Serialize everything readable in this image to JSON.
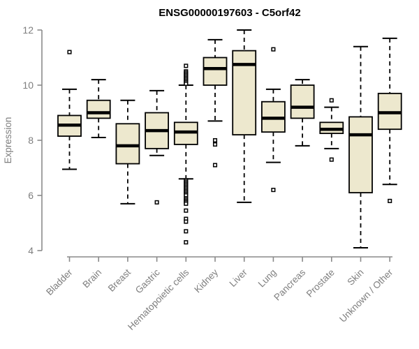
{
  "chart_data": {
    "type": "boxplot",
    "title": "ENSG00000197603 - C5orf42",
    "xlabel": "",
    "ylabel": "Expression",
    "ylim": [
      4,
      12
    ],
    "yticks": [
      4,
      6,
      8,
      10,
      12
    ],
    "grid": false,
    "legend": "none",
    "categories": [
      "Bladder",
      "Brain",
      "Breast",
      "Gastric",
      "Hematopoietic cells",
      "Kidney",
      "Liver",
      "Lung",
      "Pancreas",
      "Prostate",
      "Skin",
      "Unknown / Other"
    ],
    "series": [
      {
        "category": "Bladder",
        "whisker_low": 6.95,
        "q1": 8.15,
        "median": 8.55,
        "q3": 8.9,
        "whisker_high": 9.85,
        "outliers": [
          11.2
        ]
      },
      {
        "category": "Brain",
        "whisker_low": 8.1,
        "q1": 8.8,
        "median": 9.0,
        "q3": 9.45,
        "whisker_high": 10.2,
        "outliers": []
      },
      {
        "category": "Breast",
        "whisker_low": 5.7,
        "q1": 7.15,
        "median": 7.8,
        "q3": 8.6,
        "whisker_high": 9.45,
        "outliers": []
      },
      {
        "category": "Gastric",
        "whisker_low": 7.45,
        "q1": 7.7,
        "median": 8.35,
        "q3": 9.0,
        "whisker_high": 9.8,
        "outliers": [
          5.75
        ]
      },
      {
        "category": "Hematopoietic cells",
        "whisker_low": 6.6,
        "q1": 7.85,
        "median": 8.3,
        "q3": 8.65,
        "whisker_high": 10.0,
        "outliers": [
          10.7,
          10.5,
          10.45,
          10.4,
          10.35,
          10.3,
          10.25,
          10.2,
          10.15,
          10.1,
          10.05,
          6.55,
          6.5,
          6.45,
          6.4,
          6.35,
          6.3,
          6.25,
          6.2,
          6.15,
          6.1,
          6.05,
          6.0,
          5.9,
          5.85,
          5.8,
          5.75,
          5.7,
          5.45,
          5.15,
          5.05,
          4.7,
          4.3
        ]
      },
      {
        "category": "Kidney",
        "whisker_low": 8.7,
        "q1": 10.0,
        "median": 10.6,
        "q3": 11.0,
        "whisker_high": 11.65,
        "outliers": [
          8.0,
          7.85,
          7.1
        ]
      },
      {
        "category": "Liver",
        "whisker_low": 5.75,
        "q1": 8.2,
        "median": 10.75,
        "q3": 11.25,
        "whisker_high": 12.0,
        "outliers": []
      },
      {
        "category": "Lung",
        "whisker_low": 7.2,
        "q1": 8.3,
        "median": 8.8,
        "q3": 9.4,
        "whisker_high": 9.85,
        "outliers": [
          11.3,
          6.2
        ]
      },
      {
        "category": "Pancreas",
        "whisker_low": 7.8,
        "q1": 8.8,
        "median": 9.2,
        "q3": 10.0,
        "whisker_high": 10.2,
        "outliers": []
      },
      {
        "category": "Prostate",
        "whisker_low": 7.7,
        "q1": 8.25,
        "median": 8.4,
        "q3": 8.65,
        "whisker_high": 9.2,
        "outliers": [
          9.45,
          7.3
        ]
      },
      {
        "category": "Skin",
        "whisker_low": 4.1,
        "q1": 6.1,
        "median": 8.2,
        "q3": 8.85,
        "whisker_high": 11.4,
        "outliers": []
      },
      {
        "category": "Unknown / Other",
        "whisker_low": 6.4,
        "q1": 8.4,
        "median": 9.0,
        "q3": 9.7,
        "whisker_high": 11.7,
        "outliers": [
          5.8
        ]
      }
    ],
    "colors": {
      "box_fill": "#EDE8CE",
      "box_border": "#000000",
      "median": "#000000",
      "whisker": "#000000",
      "outlier_stroke": "#000000",
      "outlier_fill": "#ffffff",
      "axis": "#8a8a8a",
      "tick_label": "#7e7e7e",
      "title": "#000000"
    }
  }
}
